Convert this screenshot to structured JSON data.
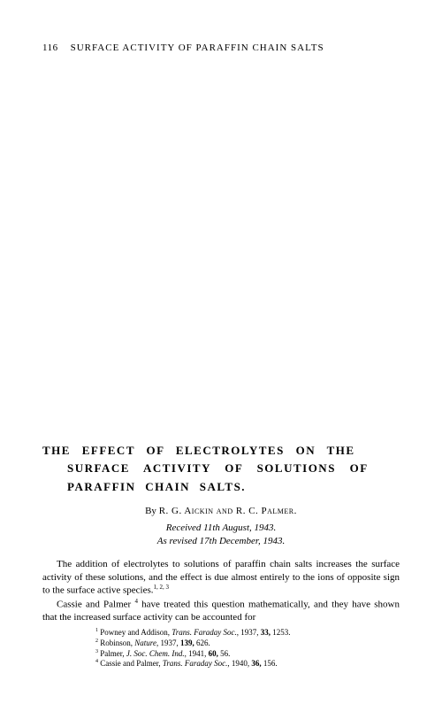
{
  "header": {
    "page_number": "116",
    "running_head": "SURFACE ACTIVITY OF PARAFFIN CHAIN SALTS"
  },
  "article": {
    "title_line1": "THE EFFECT OF ELECTROLYTES ON THE",
    "title_line2": "SURFACE ACTIVITY OF SOLUTIONS OF",
    "title_line3": "PARAFFIN CHAIN SALTS.",
    "byline_prefix": "By ",
    "authors": "R. G. Aickin and R. C. Palmer.",
    "received": "Received 11th August, 1943.",
    "revised": "As revised 17th December, 1943.",
    "para1": "The addition of electrolytes to solutions of paraffin chain salts increases the surface activity of these solutions, and the effect is due almost entirely to the ions of opposite sign to the surface active species.",
    "para1_refs": "1, 2, 3",
    "para2_pre": "Cassie and Palmer ",
    "para2_ref": "4",
    "para2_post": " have treated this question mathematically, and they have shown that the increased surface activity can be accounted for"
  },
  "footnotes": {
    "fn1_num": "1",
    "fn1_authors": " Powney and Addison, ",
    "fn1_journal": "Trans. Faraday Soc.",
    "fn1_rest": ", 1937, ",
    "fn1_vol": "33,",
    "fn1_page": " 1253.",
    "fn2_num": "2",
    "fn2_authors": " Robinson, ",
    "fn2_journal": "Nature",
    "fn2_rest": ", 1937, ",
    "fn2_vol": "139,",
    "fn2_page": " 626.",
    "fn3_num": "3",
    "fn3_authors": " Palmer, ",
    "fn3_journal": "J. Soc. Chem. Ind.",
    "fn3_rest": ", 1941, ",
    "fn3_vol": "60,",
    "fn3_page": " 56.",
    "fn4_num": "4",
    "fn4_authors": " Cassie and Palmer, ",
    "fn4_journal": "Trans. Faraday Soc.",
    "fn4_rest": ", 1940, ",
    "fn4_vol": "36,",
    "fn4_page": " 156."
  }
}
